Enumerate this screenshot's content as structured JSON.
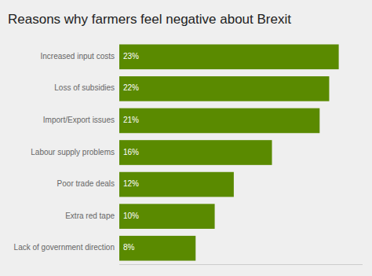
{
  "chart_data": {
    "type": "bar",
    "orientation": "horizontal",
    "title": "Reasons why farmers feel negative about Brexit",
    "categories": [
      "Lack of government direction",
      "Extra red tape",
      "Poor trade deals",
      "Labour supply problems",
      "Import/Export issues",
      "Loss of subsidies",
      "Increased input costs"
    ],
    "values": [
      8,
      10,
      12,
      16,
      21,
      22,
      23
    ],
    "value_labels": [
      "8%",
      "10%",
      "12%",
      "16%",
      "21%",
      "22%",
      "23%"
    ],
    "data_labels": true,
    "color": "#5a8a00",
    "xlim": [
      0,
      25.5
    ],
    "tick_labels": "y",
    "grid": false
  }
}
